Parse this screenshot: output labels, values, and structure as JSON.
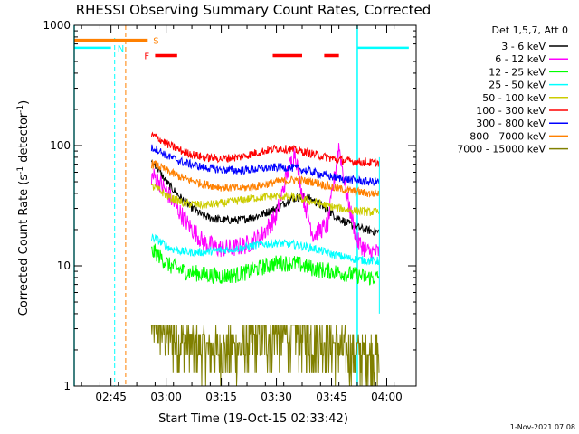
{
  "chart_data": {
    "type": "line",
    "title": "RHESSI Observing Summary Count Rates, Corrected",
    "xlabel": "Start Time (19-Oct-15 02:33:42)",
    "ylabel_parts": {
      "main": "Corrected Count Rate (s",
      "sup": "-1",
      "rest": " detector",
      "sup2": "-1",
      "close": ")"
    },
    "yscale": "log",
    "ylim": [
      1,
      1000
    ],
    "xlim_minutes": [
      155,
      248
    ],
    "x_ticks": [
      {
        "m": 165,
        "label": "02:45"
      },
      {
        "m": 180,
        "label": "03:00"
      },
      {
        "m": 195,
        "label": "03:15"
      },
      {
        "m": 210,
        "label": "03:30"
      },
      {
        "m": 225,
        "label": "03:45"
      },
      {
        "m": 240,
        "label": "04:00"
      }
    ],
    "y_ticks": [
      {
        "v": 1,
        "label": "1"
      },
      {
        "v": 10,
        "label": "10"
      },
      {
        "v": 100,
        "label": "100"
      },
      {
        "v": 1000,
        "label": "1000"
      }
    ],
    "legend_title": "Det 1,5,7, Att 0",
    "legend_position": "right",
    "series": [
      {
        "name": "3 - 6 keV",
        "color": "#000000",
        "trend": [
          [
            177,
            70
          ],
          [
            180,
            50
          ],
          [
            185,
            34
          ],
          [
            190,
            26
          ],
          [
            195,
            24
          ],
          [
            200,
            24
          ],
          [
            205,
            26
          ],
          [
            210,
            30
          ],
          [
            214,
            36
          ],
          [
            218,
            38
          ],
          [
            222,
            32
          ],
          [
            226,
            26
          ],
          [
            230,
            22
          ],
          [
            234,
            20
          ],
          [
            238,
            19
          ]
        ]
      },
      {
        "name": "6 - 12 keV",
        "color": "#ff00ff",
        "trend": [
          [
            177,
            55
          ],
          [
            180,
            42
          ],
          [
            183,
            30
          ],
          [
            186,
            22
          ],
          [
            190,
            16
          ],
          [
            194,
            14
          ],
          [
            198,
            14
          ],
          [
            202,
            15
          ],
          [
            206,
            18
          ],
          [
            210,
            26
          ],
          [
            213,
            60
          ],
          [
            215,
            90
          ],
          [
            217,
            40
          ],
          [
            220,
            18
          ],
          [
            224,
            22
          ],
          [
            227,
            100
          ],
          [
            229,
            40
          ],
          [
            232,
            16
          ],
          [
            235,
            13
          ],
          [
            238,
            13
          ]
        ]
      },
      {
        "name": "12 - 25 keV",
        "color": "#00ff00",
        "trend": [
          [
            177,
            13
          ],
          [
            181,
            10
          ],
          [
            185,
            9
          ],
          [
            190,
            8.5
          ],
          [
            195,
            8.2
          ],
          [
            200,
            8.5
          ],
          [
            205,
            9.5
          ],
          [
            210,
            10.5
          ],
          [
            215,
            10.5
          ],
          [
            220,
            9.5
          ],
          [
            225,
            9
          ],
          [
            230,
            8.5
          ],
          [
            235,
            8
          ],
          [
            238,
            8
          ]
        ]
      },
      {
        "name": "25 - 50 keV",
        "color": "#00ffff",
        "trend": [
          [
            177,
            17
          ],
          [
            181,
            14
          ],
          [
            185,
            13
          ],
          [
            190,
            13
          ],
          [
            195,
            13.5
          ],
          [
            200,
            14
          ],
          [
            205,
            15
          ],
          [
            210,
            15.5
          ],
          [
            215,
            15
          ],
          [
            220,
            14
          ],
          [
            225,
            12.5
          ],
          [
            230,
            11.5
          ],
          [
            235,
            11
          ],
          [
            238,
            11
          ]
        ]
      },
      {
        "name": "50 - 100 keV",
        "color": "#cccc00",
        "trend": [
          [
            177,
            45
          ],
          [
            181,
            37
          ],
          [
            185,
            33
          ],
          [
            190,
            32
          ],
          [
            195,
            33
          ],
          [
            200,
            35
          ],
          [
            205,
            37
          ],
          [
            210,
            38
          ],
          [
            215,
            37
          ],
          [
            220,
            34
          ],
          [
            225,
            31
          ],
          [
            230,
            29
          ],
          [
            235,
            28
          ],
          [
            238,
            28
          ]
        ]
      },
      {
        "name": "100 - 300 keV",
        "color": "#ff0000",
        "trend": [
          [
            177,
            120
          ],
          [
            181,
            100
          ],
          [
            185,
            88
          ],
          [
            190,
            80
          ],
          [
            195,
            78
          ],
          [
            200,
            80
          ],
          [
            205,
            88
          ],
          [
            210,
            95
          ],
          [
            215,
            92
          ],
          [
            220,
            85
          ],
          [
            225,
            78
          ],
          [
            230,
            74
          ],
          [
            235,
            72
          ],
          [
            238,
            72
          ]
        ]
      },
      {
        "name": "300 - 800 keV",
        "color": "#0000ff",
        "trend": [
          [
            177,
            95
          ],
          [
            181,
            80
          ],
          [
            185,
            72
          ],
          [
            190,
            66
          ],
          [
            195,
            63
          ],
          [
            200,
            62
          ],
          [
            205,
            64
          ],
          [
            210,
            66
          ],
          [
            215,
            65
          ],
          [
            220,
            60
          ],
          [
            225,
            55
          ],
          [
            230,
            52
          ],
          [
            235,
            50
          ],
          [
            238,
            50
          ]
        ]
      },
      {
        "name": "800 - 7000 keV",
        "color": "#ff8000",
        "trend": [
          [
            177,
            70
          ],
          [
            181,
            60
          ],
          [
            185,
            53
          ],
          [
            190,
            48
          ],
          [
            195,
            45
          ],
          [
            200,
            44
          ],
          [
            205,
            46
          ],
          [
            210,
            50
          ],
          [
            215,
            52
          ],
          [
            220,
            50
          ],
          [
            225,
            45
          ],
          [
            230,
            42
          ],
          [
            235,
            40
          ],
          [
            238,
            40
          ]
        ]
      },
      {
        "name": "7000 - 15000 keV",
        "color": "#808000",
        "trend": [
          [
            177,
            3.2
          ],
          [
            181,
            2.4
          ],
          [
            185,
            2.1
          ],
          [
            190,
            1.9
          ],
          [
            195,
            1.8
          ],
          [
            200,
            1.9
          ],
          [
            205,
            2.3
          ],
          [
            210,
            2.5
          ],
          [
            215,
            2.5
          ],
          [
            220,
            2.3
          ],
          [
            225,
            2.0
          ],
          [
            230,
            1.8
          ],
          [
            235,
            1.7
          ],
          [
            238,
            1.7
          ]
        ]
      }
    ],
    "saa_level": {
      "color": "#00ffff",
      "value": 650,
      "segments": [
        [
          155,
          165
        ],
        [
          232,
          246
        ]
      ]
    },
    "night_marker": {
      "label": "N",
      "color": "#00ffff",
      "solid_lines": [
        155,
        232
      ],
      "dashed_lines": [
        166
      ]
    },
    "sun_flag": {
      "label": "S",
      "color": "#ff8000",
      "value": 750,
      "segment": [
        155,
        175
      ]
    },
    "flare_flag": {
      "label": "F",
      "color": "#ff0000",
      "value": 560,
      "segments": [
        [
          177,
          183
        ],
        [
          209,
          217
        ],
        [
          223,
          227
        ]
      ]
    },
    "orange_dashed_lines": [
      169,
      248
    ],
    "data_gap_start": 176,
    "data_end": 238
  },
  "footer": {
    "date": "1-Nov-2021 07:08"
  }
}
